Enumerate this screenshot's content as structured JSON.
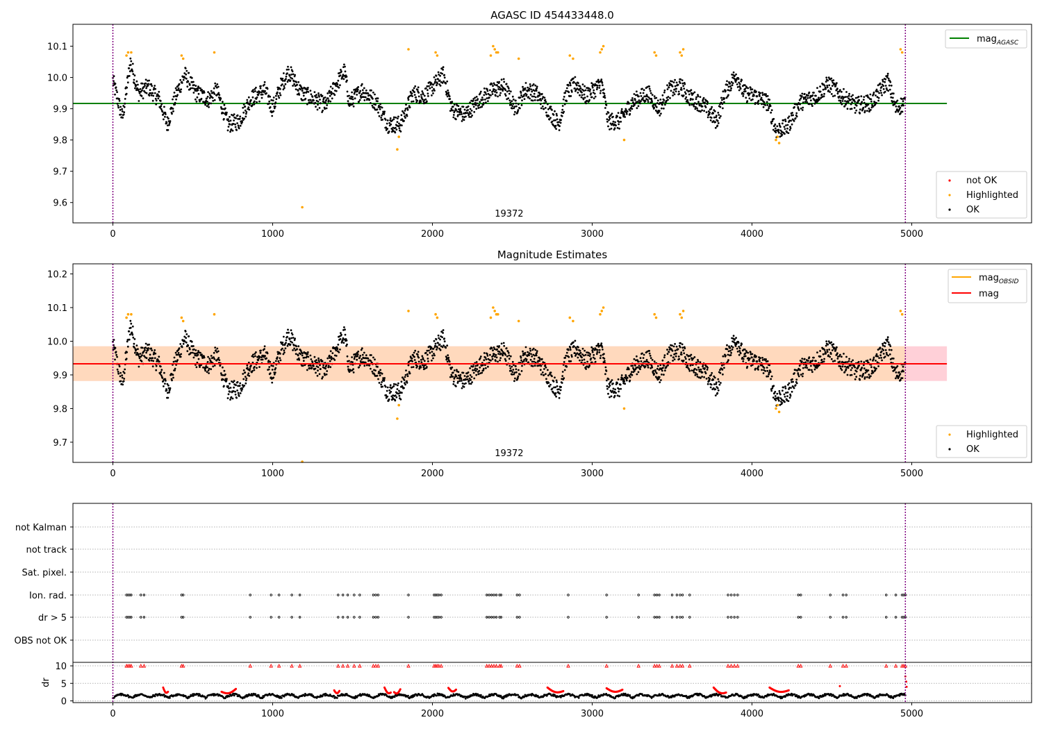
{
  "figure": {
    "background": "#ffffff",
    "colors": {
      "ok": "#000000",
      "highlighted": "#ffa500",
      "not_ok": "#ff0000",
      "mag_agasc": "#008000",
      "mag_obsid": "#ffa500",
      "mag": "#ff0000",
      "obsid_line": "#800080",
      "band_outer": "#ffc0cb",
      "band_inner": "#ffdab9"
    }
  },
  "chart_data": [
    {
      "type": "scatter",
      "title": "AGASC ID 454433448.0",
      "xlabel": "",
      "ylabel": "",
      "xlim": [
        -250,
        5750
      ],
      "ylim": [
        9.535,
        10.17
      ],
      "xticks": [
        0,
        1000,
        2000,
        3000,
        4000,
        5000
      ],
      "yticks": [
        9.6,
        9.7,
        9.8,
        9.9,
        10.0,
        10.1
      ],
      "ytick_labels": [
        "9.6",
        "9.7",
        "9.8",
        "9.9",
        "10.0",
        "10.1"
      ],
      "grid": false,
      "obsid_lines": [
        0,
        4960
      ],
      "obsid_label": {
        "text": "19372",
        "x": 2480
      },
      "hlines": [
        {
          "name": "mag_AGASC",
          "y": 9.917,
          "x_range": [
            -250,
            5220
          ]
        }
      ],
      "legend_upper": {
        "placement": "upper-right",
        "entries": [
          {
            "label": "mag",
            "subscript": "AGASC"
          }
        ]
      },
      "legend_lower": {
        "placement": "lower-right",
        "entries": [
          "not OK",
          "Highlighted",
          "OK"
        ]
      },
      "series": [
        {
          "name": "Highlighted",
          "points": [
            [
              85,
              10.07
            ],
            [
              95,
              10.08
            ],
            [
              115,
              10.08
            ],
            [
              430,
              10.07
            ],
            [
              440,
              10.06
            ],
            [
              635,
              10.08
            ],
            [
              1185,
              9.585
            ],
            [
              1780,
              9.77
            ],
            [
              1790,
              9.81
            ],
            [
              1850,
              10.09
            ],
            [
              2020,
              10.08
            ],
            [
              2030,
              10.07
            ],
            [
              2365,
              10.07
            ],
            [
              2380,
              10.1
            ],
            [
              2390,
              10.09
            ],
            [
              2400,
              10.08
            ],
            [
              2410,
              10.08
            ],
            [
              2540,
              10.06
            ],
            [
              2860,
              10.07
            ],
            [
              2880,
              10.06
            ],
            [
              3050,
              10.08
            ],
            [
              3060,
              10.09
            ],
            [
              3070,
              10.1
            ],
            [
              3200,
              9.8
            ],
            [
              3390,
              10.08
            ],
            [
              3400,
              10.07
            ],
            [
              3550,
              10.08
            ],
            [
              3560,
              10.07
            ],
            [
              3570,
              10.09
            ],
            [
              4150,
              9.8
            ],
            [
              4160,
              9.81
            ],
            [
              4170,
              9.79
            ],
            [
              4930,
              10.09
            ],
            [
              4940,
              10.08
            ]
          ]
        },
        {
          "name": "OK",
          "trend": [
            [
              0,
              9.99
            ],
            [
              60,
              9.87
            ],
            [
              110,
              10.05
            ],
            [
              160,
              9.95
            ],
            [
              220,
              9.97
            ],
            [
              290,
              9.93
            ],
            [
              340,
              9.85
            ],
            [
              400,
              9.95
            ],
            [
              450,
              10.01
            ],
            [
              520,
              9.95
            ],
            [
              600,
              9.93
            ],
            [
              650,
              9.96
            ],
            [
              720,
              9.85
            ],
            [
              790,
              9.86
            ],
            [
              860,
              9.93
            ],
            [
              950,
              9.96
            ],
            [
              1000,
              9.9
            ],
            [
              1050,
              9.97
            ],
            [
              1100,
              10.02
            ],
            [
              1180,
              9.95
            ],
            [
              1260,
              9.93
            ],
            [
              1330,
              9.91
            ],
            [
              1400,
              9.98
            ],
            [
              1450,
              10.02
            ],
            [
              1480,
              9.92
            ],
            [
              1560,
              9.96
            ],
            [
              1650,
              9.92
            ],
            [
              1720,
              9.85
            ],
            [
              1800,
              9.85
            ],
            [
              1880,
              9.95
            ],
            [
              1950,
              9.94
            ],
            [
              2000,
              9.97
            ],
            [
              2070,
              10.01
            ],
            [
              2120,
              9.9
            ],
            [
              2200,
              9.88
            ],
            [
              2300,
              9.93
            ],
            [
              2380,
              9.96
            ],
            [
              2450,
              9.97
            ],
            [
              2520,
              9.9
            ],
            [
              2580,
              9.96
            ],
            [
              2650,
              9.95
            ],
            [
              2720,
              9.9
            ],
            [
              2790,
              9.85
            ],
            [
              2840,
              9.95
            ],
            [
              2900,
              9.98
            ],
            [
              2960,
              9.94
            ],
            [
              3060,
              9.98
            ],
            [
              3100,
              9.86
            ],
            [
              3170,
              9.86
            ],
            [
              3250,
              9.92
            ],
            [
              3350,
              9.95
            ],
            [
              3420,
              9.9
            ],
            [
              3480,
              9.96
            ],
            [
              3560,
              9.97
            ],
            [
              3600,
              9.94
            ],
            [
              3700,
              9.91
            ],
            [
              3780,
              9.86
            ],
            [
              3830,
              9.95
            ],
            [
              3900,
              10.01
            ],
            [
              3950,
              9.95
            ],
            [
              4020,
              9.94
            ],
            [
              4100,
              9.92
            ],
            [
              4150,
              9.83
            ],
            [
              4220,
              9.84
            ],
            [
              4300,
              9.92
            ],
            [
              4400,
              9.94
            ],
            [
              4480,
              9.98
            ],
            [
              4560,
              9.94
            ],
            [
              4650,
              9.91
            ],
            [
              4750,
              9.92
            ],
            [
              4850,
              9.99
            ],
            [
              4900,
              9.9
            ],
            [
              4960,
              9.92
            ]
          ]
        }
      ]
    },
    {
      "type": "scatter",
      "title": "Magnitude Estimates",
      "xlabel": "",
      "ylabel": "",
      "xlim": [
        -250,
        5750
      ],
      "ylim": [
        9.64,
        10.23
      ],
      "xticks": [
        0,
        1000,
        2000,
        3000,
        4000,
        5000
      ],
      "yticks": [
        9.7,
        9.8,
        9.9,
        10.0,
        10.1,
        10.2
      ],
      "ytick_labels": [
        "9.7",
        "9.8",
        "9.9",
        "10.0",
        "10.1",
        "10.2"
      ],
      "grid": false,
      "obsid_lines": [
        0,
        4960
      ],
      "obsid_label": {
        "text": "19372",
        "x": 2480
      },
      "bands": [
        {
          "name": "mag range",
          "y": [
            9.882,
            9.985
          ],
          "x_range": [
            -250,
            5220
          ]
        },
        {
          "name": "mag_OBSID range",
          "y": [
            9.882,
            9.985
          ],
          "x_range": [
            -250,
            4960
          ]
        }
      ],
      "hlines": [
        {
          "name": "mag",
          "y": 9.933,
          "x_range": [
            -250,
            5220
          ]
        },
        {
          "name": "mag_OBSID",
          "y": 9.933,
          "x_range": [
            -250,
            4960
          ]
        }
      ],
      "legend_upper": {
        "placement": "upper-right",
        "entries": [
          {
            "label": "mag",
            "subscript": "OBSID"
          },
          {
            "label": "mag",
            "subscript": ""
          }
        ]
      },
      "legend_lower": {
        "placement": "lower-right",
        "entries": [
          "Highlighted",
          "OK"
        ]
      }
    },
    {
      "type": "scatter",
      "title": "",
      "xlim": [
        -250,
        5750
      ],
      "xticks": [
        0,
        1000,
        2000,
        3000,
        4000,
        5000
      ],
      "grid": true,
      "flag_rows": [
        "not Kalman",
        "not track",
        "Sat. pixel.",
        "Ion. rad.",
        "dr > 5",
        "OBS not OK"
      ],
      "flag_x": [
        85,
        95,
        105,
        115,
        175,
        195,
        430,
        440,
        860,
        990,
        1040,
        1120,
        1170,
        1410,
        1440,
        1470,
        1510,
        1545,
        1630,
        1645,
        1660,
        1850,
        2010,
        2020,
        2030,
        2040,
        2055,
        2340,
        2355,
        2370,
        2385,
        2400,
        2420,
        2430,
        2530,
        2545,
        2850,
        3090,
        3290,
        3390,
        3405,
        3420,
        3500,
        3530,
        3550,
        3565,
        3610,
        3850,
        3870,
        3890,
        3910,
        4290,
        4305,
        4490,
        4570,
        4590,
        4840,
        4900,
        4940,
        4950,
        4960
      ],
      "dr": {
        "ylabel": "dr",
        "ylim": [
          -0.5,
          11
        ],
        "yticks": [
          0,
          5,
          10
        ],
        "ytick_labels": [
          "0",
          "5",
          "10"
        ],
        "clip_value": 10,
        "red_segments": [
          [
            315,
            345,
            3.8,
            2.6
          ],
          [
            680,
            770,
            2.6,
            3.4
          ],
          [
            1385,
            1420,
            3.0,
            3.0
          ],
          [
            1700,
            1740,
            3.8,
            2.4
          ],
          [
            1760,
            1800,
            2.5,
            3.4
          ],
          [
            2100,
            2150,
            3.7,
            3.3
          ],
          [
            2720,
            2820,
            3.8,
            2.8
          ],
          [
            3090,
            3190,
            3.6,
            3.2
          ],
          [
            3760,
            3840,
            3.8,
            2.4
          ],
          [
            4110,
            4230,
            3.8,
            3.0
          ]
        ],
        "red_points": [
          [
            4550,
            4.2
          ],
          [
            4960,
            7.0
          ],
          [
            4965,
            5.5
          ],
          [
            4968,
            4.0
          ]
        ]
      }
    }
  ]
}
